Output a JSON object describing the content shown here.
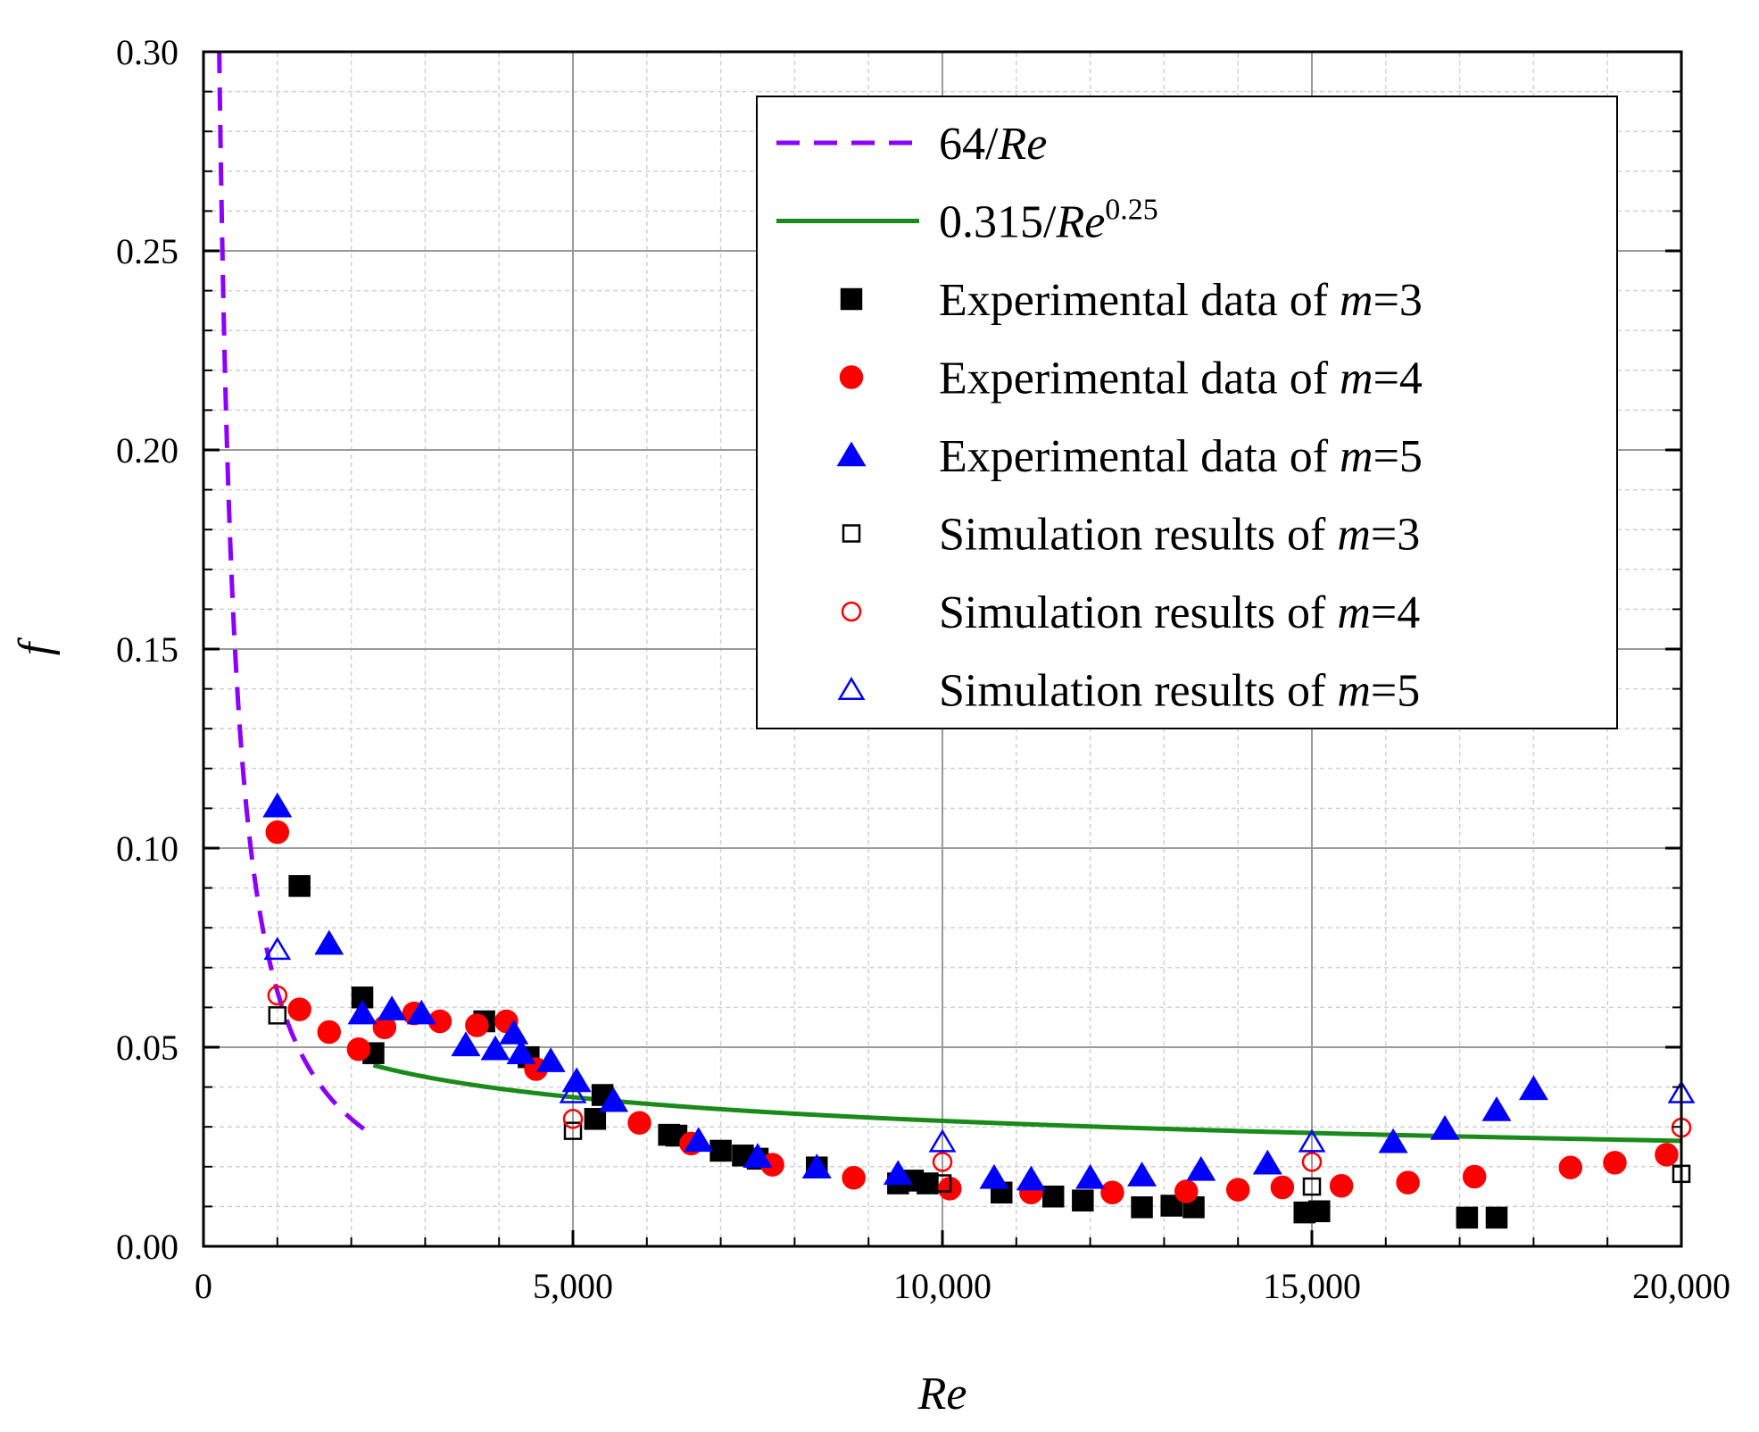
{
  "chart_data": {
    "type": "scatter",
    "xlabel": "Re",
    "ylabel": "f",
    "xlim": [
      0,
      20000
    ],
    "ylim": [
      0,
      0.3
    ],
    "x_ticks": [
      0,
      5000,
      10000,
      15000,
      20000
    ],
    "x_tick_labels": [
      "0",
      "5,000",
      "10,000",
      "15,000",
      "20,000"
    ],
    "y_ticks": [
      0,
      0.05,
      0.1,
      0.15,
      0.2,
      0.25,
      0.3
    ],
    "y_tick_labels": [
      "0.00",
      "0.05",
      "0.10",
      "0.15",
      "0.20",
      "0.25",
      "0.30"
    ],
    "grid": true,
    "legend_position": "top-right",
    "curves": [
      {
        "name": "64/Re",
        "legend_parts": [
          {
            "t": "64/"
          },
          {
            "t": "Re",
            "i": true
          }
        ],
        "color": "#8B00FF",
        "dash": true,
        "formula": "laminar",
        "x_range": [
          213,
          2300
        ]
      },
      {
        "name": "0.315/Re^0.25",
        "legend_parts": [
          {
            "t": "0.315/"
          },
          {
            "t": "Re",
            "i": true
          },
          {
            "t": "0.25",
            "sup": true
          }
        ],
        "color": "#1A8A1A",
        "dash": false,
        "formula": "blasius",
        "x_range": [
          2300,
          20000
        ]
      }
    ],
    "series": [
      {
        "name": "Experimental data of m=3",
        "legend_parts": [
          {
            "t": "Experimental data of "
          },
          {
            "t": "m",
            "i": true
          },
          {
            "t": "=3"
          }
        ],
        "marker": "square",
        "filled": true,
        "color": "#000000",
        "points": [
          [
            1300,
            0.0905
          ],
          [
            2150,
            0.0625
          ],
          [
            2300,
            0.0485
          ],
          [
            3800,
            0.0565
          ],
          [
            4400,
            0.0475
          ],
          [
            5300,
            0.032
          ],
          [
            5400,
            0.038
          ],
          [
            6300,
            0.028
          ],
          [
            6400,
            0.0278
          ],
          [
            7000,
            0.024
          ],
          [
            7300,
            0.0228
          ],
          [
            7500,
            0.022
          ],
          [
            8300,
            0.0198
          ],
          [
            9400,
            0.0158
          ],
          [
            9600,
            0.0165
          ],
          [
            9800,
            0.0158
          ],
          [
            10800,
            0.0135
          ],
          [
            11500,
            0.0125
          ],
          [
            11900,
            0.0115
          ],
          [
            12700,
            0.0098
          ],
          [
            13100,
            0.0102
          ],
          [
            13400,
            0.0098
          ],
          [
            14900,
            0.0085
          ],
          [
            15100,
            0.0088
          ],
          [
            17100,
            0.0072
          ],
          [
            17500,
            0.0072
          ]
        ]
      },
      {
        "name": "Experimental data of m=4",
        "legend_parts": [
          {
            "t": "Experimental data of "
          },
          {
            "t": "m",
            "i": true
          },
          {
            "t": "=4"
          }
        ],
        "marker": "circle",
        "filled": true,
        "color": "#FF0000",
        "points": [
          [
            1000,
            0.104
          ],
          [
            1300,
            0.0595
          ],
          [
            1700,
            0.0538
          ],
          [
            2100,
            0.0495
          ],
          [
            2450,
            0.055
          ],
          [
            2850,
            0.0585
          ],
          [
            3200,
            0.0565
          ],
          [
            3700,
            0.0555
          ],
          [
            4100,
            0.0565
          ],
          [
            4500,
            0.0445
          ],
          [
            5900,
            0.031
          ],
          [
            6600,
            0.0258
          ],
          [
            7700,
            0.0205
          ],
          [
            8800,
            0.0172
          ],
          [
            10100,
            0.0145
          ],
          [
            11200,
            0.0135
          ],
          [
            12300,
            0.0135
          ],
          [
            13300,
            0.0138
          ],
          [
            14000,
            0.0142
          ],
          [
            14600,
            0.0148
          ],
          [
            15400,
            0.0152
          ],
          [
            16300,
            0.016
          ],
          [
            17200,
            0.0175
          ],
          [
            18500,
            0.0198
          ],
          [
            19100,
            0.021
          ],
          [
            19800,
            0.023
          ]
        ]
      },
      {
        "name": "Experimental data of m=5",
        "legend_parts": [
          {
            "t": "Experimental data of "
          },
          {
            "t": "m",
            "i": true
          },
          {
            "t": "=5"
          }
        ],
        "marker": "triangle",
        "filled": true,
        "color": "#0000FF",
        "points": [
          [
            1000,
            0.1105
          ],
          [
            1700,
            0.076
          ],
          [
            2150,
            0.0585
          ],
          [
            2550,
            0.0595
          ],
          [
            2950,
            0.0585
          ],
          [
            3550,
            0.0505
          ],
          [
            3950,
            0.0495
          ],
          [
            4200,
            0.0535
          ],
          [
            4300,
            0.0485
          ],
          [
            4700,
            0.0465
          ],
          [
            5050,
            0.0415
          ],
          [
            5550,
            0.0365
          ],
          [
            6700,
            0.0265
          ],
          [
            7500,
            0.0225
          ],
          [
            8300,
            0.0198
          ],
          [
            9400,
            0.0182
          ],
          [
            10700,
            0.0172
          ],
          [
            11200,
            0.0168
          ],
          [
            12000,
            0.0172
          ],
          [
            12700,
            0.0178
          ],
          [
            13500,
            0.0192
          ],
          [
            14400,
            0.0208
          ],
          [
            16100,
            0.0262
          ],
          [
            16800,
            0.0295
          ],
          [
            17500,
            0.0342
          ],
          [
            18000,
            0.0395
          ]
        ]
      },
      {
        "name": "Simulation results of m=3",
        "legend_parts": [
          {
            "t": "Simulation results of "
          },
          {
            "t": "m",
            "i": true
          },
          {
            "t": "=3"
          }
        ],
        "marker": "square",
        "filled": false,
        "color": "#000000",
        "points": [
          [
            1000,
            0.058
          ],
          [
            5000,
            0.029
          ],
          [
            10000,
            0.0158
          ],
          [
            15000,
            0.015
          ],
          [
            20000,
            0.0182
          ]
        ]
      },
      {
        "name": "Simulation results of m=4",
        "legend_parts": [
          {
            "t": "Simulation results of "
          },
          {
            "t": "m",
            "i": true
          },
          {
            "t": "=4"
          }
        ],
        "marker": "circle",
        "filled": false,
        "color": "#FF0000",
        "points": [
          [
            1000,
            0.063
          ],
          [
            5000,
            0.032
          ],
          [
            10000,
            0.0212
          ],
          [
            15000,
            0.0212
          ],
          [
            20000,
            0.0298
          ]
        ]
      },
      {
        "name": "Simulation results of m=5",
        "legend_parts": [
          {
            "t": "Simulation results of "
          },
          {
            "t": "m",
            "i": true
          },
          {
            "t": "=5"
          }
        ],
        "marker": "triangle",
        "filled": false,
        "color": "#0000FF",
        "points": [
          [
            1000,
            0.0745
          ],
          [
            5000,
            0.0385
          ],
          [
            10000,
            0.0262
          ],
          [
            15000,
            0.0262
          ],
          [
            20000,
            0.0385
          ]
        ]
      }
    ]
  }
}
